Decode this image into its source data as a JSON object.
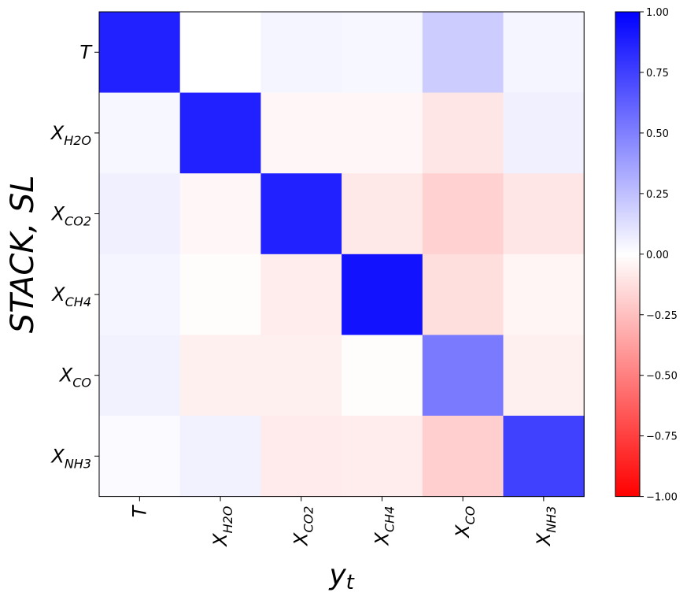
{
  "chart_data": {
    "type": "heatmap",
    "title": "",
    "xlabel": "y_t",
    "ylabel": "STACK, SL",
    "x_categories": [
      {
        "main": "X",
        "sub": ""
      },
      {
        "main": "X",
        "sub": "H2O"
      },
      {
        "main": "X",
        "sub": "CO2"
      },
      {
        "main": "X",
        "sub": "CH4"
      },
      {
        "main": "X",
        "sub": "CO"
      },
      {
        "main": "X",
        "sub": "NH3"
      }
    ],
    "x_categories_first": "T",
    "y_categories": [
      {
        "main": "T",
        "sub": ""
      },
      {
        "main": "X",
        "sub": "H2O"
      },
      {
        "main": "X",
        "sub": "CO2"
      },
      {
        "main": "X",
        "sub": "CH4"
      },
      {
        "main": "X",
        "sub": "CO"
      },
      {
        "main": "X",
        "sub": "NH3"
      }
    ],
    "values": [
      [
        0.87,
        0.0,
        0.04,
        0.03,
        0.2,
        0.04
      ],
      [
        0.03,
        0.87,
        -0.03,
        -0.03,
        -0.1,
        0.06
      ],
      [
        0.06,
        -0.03,
        0.87,
        -0.09,
        -0.18,
        -0.1
      ],
      [
        0.04,
        -0.01,
        -0.07,
        0.93,
        -0.13,
        -0.04
      ],
      [
        0.05,
        -0.06,
        -0.06,
        -0.01,
        0.52,
        -0.06
      ],
      [
        0.02,
        0.05,
        -0.08,
        -0.07,
        -0.19,
        0.75
      ]
    ],
    "colormap": [
      "#ff0000",
      "#ffffff",
      "#0000ff"
    ],
    "colorbar": {
      "vmin": -1.0,
      "vmax": 1.0,
      "ticks": [
        "-1.00",
        "-0.75",
        "-0.50",
        "-0.25",
        "0.00",
        "0.25",
        "0.50",
        "0.75",
        "1.00"
      ]
    }
  }
}
